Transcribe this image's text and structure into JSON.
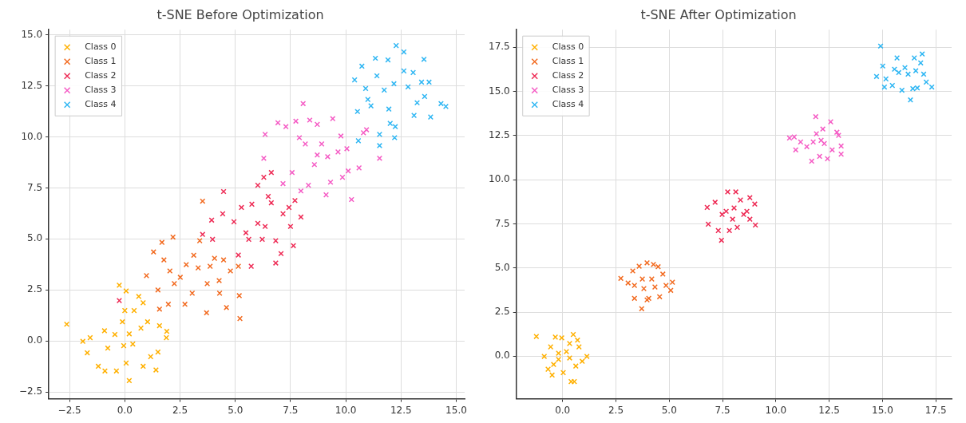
{
  "chart_data": [
    {
      "type": "scatter",
      "title": "t-SNE Before Optimization",
      "xlim": [
        -3.44,
        15.38
      ],
      "ylim": [
        -2.83,
        15.25
      ],
      "xticks": [
        {
          "value": -2.5,
          "label": "−2.5"
        },
        {
          "value": 0,
          "label": "0.0"
        },
        {
          "value": 2.5,
          "label": "2.5"
        },
        {
          "value": 5,
          "label": "5.0"
        },
        {
          "value": 7.5,
          "label": "7.5"
        },
        {
          "value": 10,
          "label": "10.0"
        },
        {
          "value": 12.5,
          "label": "12.5"
        },
        {
          "value": 15,
          "label": "15.0"
        }
      ],
      "yticks": [
        {
          "value": -2.5,
          "label": "−2.5"
        },
        {
          "value": 0,
          "label": "0.0"
        },
        {
          "value": 2.5,
          "label": "2.5"
        },
        {
          "value": 5,
          "label": "5.0"
        },
        {
          "value": 7.5,
          "label": "7.5"
        },
        {
          "value": 10,
          "label": "10.0"
        },
        {
          "value": 12.5,
          "label": "12.5"
        },
        {
          "value": 15,
          "label": "15.0"
        }
      ],
      "grid": true,
      "legend": "top left",
      "marker": "cross",
      "series": [
        {
          "name": "Class 0",
          "color": "#ffb000",
          "x": [
            -2.63,
            -1.9,
            -1.57,
            -1.7,
            -1.2,
            -0.9,
            -0.92,
            -0.77,
            -0.38,
            -0.25,
            0.06,
            0,
            -0.11,
            0.2,
            0.06,
            0.2,
            -0.05,
            0.63,
            0.83,
            0.73,
            1.03,
            1.17,
            1.5,
            1.41,
            1.9,
            1.88,
            1.57,
            0.42,
            0.36,
            -0.45,
            0.83
          ],
          "values": [
            0.82,
            -0.02,
            0.16,
            -0.58,
            -1.24,
            -1.47,
            0.5,
            -0.35,
            -1.47,
            2.73,
            2.45,
            1.49,
            0.94,
            0.35,
            -1.08,
            -1.94,
            -0.23,
            2.18,
            1.87,
            0.63,
            0.94,
            -0.77,
            -0.54,
            -1.42,
            0.47,
            0.16,
            0.75,
            1.49,
            -0.15,
            0.32,
            -1.24
          ]
        },
        {
          "name": "Class 1",
          "color": "#f26b21",
          "x": [
            0.98,
            1.3,
            1.68,
            2.18,
            1.5,
            1.57,
            1.97,
            1.77,
            2.04,
            2.24,
            2.51,
            2.72,
            3.05,
            3.32,
            3.39,
            3.52,
            3.73,
            3.7,
            3.86,
            4.06,
            4.27,
            4.47,
            4.78,
            4.6,
            4.29,
            5.14,
            5.18,
            5.21,
            2.78,
            3.12
          ],
          "values": [
            3.2,
            4.36,
            4.83,
            5.09,
            2.5,
            1.56,
            1.8,
            3.97,
            3.43,
            2.81,
            3.12,
            1.8,
            2.34,
            3.58,
            4.91,
            6.85,
            2.81,
            1.38,
            3.66,
            4.05,
            2.96,
            3.97,
            3.43,
            1.64,
            2.34,
            3.66,
            2.22,
            1.1,
            3.74,
            4.2
          ]
        },
        {
          "name": "Class 2",
          "color": "#ee2b55",
          "x": [
            -0.25,
            3.52,
            3.93,
            3.97,
            4.43,
            4.47,
            4.94,
            5.14,
            5.28,
            5.48,
            5.75,
            5.72,
            6.02,
            6.02,
            6.29,
            6.35,
            6.63,
            6.63,
            6.83,
            6.83,
            7.07,
            7.16,
            7.43,
            7.5,
            7.63,
            7.7,
            7.97,
            6.22,
            5.61,
            6.49
          ],
          "values": [
            1.98,
            5.22,
            5.92,
            4.98,
            6.23,
            7.32,
            5.84,
            4.21,
            6.54,
            5.3,
            6.7,
            3.66,
            7.63,
            5.76,
            8.02,
            5.61,
            8.25,
            6.77,
            4.91,
            3.82,
            4.28,
            6.23,
            6.54,
            5.61,
            4.67,
            6.88,
            6.07,
            4.98,
            4.98,
            7.08
          ]
        },
        {
          "name": "Class 3",
          "color": "#f55cc5",
          "x": [
            6.35,
            6.29,
            6.93,
            7.29,
            7.16,
            7.57,
            7.74,
            8.07,
            7.97,
            7.9,
            8.17,
            8.37,
            8.31,
            8.58,
            8.71,
            8.91,
            9.11,
            9.18,
            9.41,
            9.31,
            9.65,
            9.78,
            9.85,
            10.05,
            10.11,
            10.26,
            10.6,
            10.8,
            11.53,
            10.94,
            8.71
          ],
          "values": [
            10.12,
            8.95,
            10.69,
            10.5,
            7.71,
            8.25,
            10.77,
            11.63,
            7.35,
            9.96,
            9.65,
            10.82,
            7.63,
            8.64,
            10.61,
            9.65,
            7.16,
            9.03,
            10.89,
            7.78,
            9.26,
            10.04,
            8.02,
            9.42,
            8.33,
            6.93,
            8.48,
            10.2,
            8.95,
            10.35,
            9.11
          ]
        },
        {
          "name": "Class 4",
          "color": "#2eb6f3",
          "x": [
            10.4,
            10.57,
            10.73,
            10.53,
            10.9,
            11.0,
            11.34,
            11.41,
            11.53,
            11.53,
            11.74,
            11.91,
            11.95,
            12.01,
            12.21,
            12.18,
            12.28,
            12.24,
            12.63,
            12.63,
            12.82,
            13.05,
            13.09,
            13.23,
            13.43,
            13.54,
            13.57,
            13.84,
            13.77,
            14.31,
            14.53,
            11.14
          ],
          "values": [
            12.79,
            9.81,
            13.46,
            11.24,
            12.37,
            11.83,
            13.85,
            12.99,
            10.12,
            9.57,
            12.29,
            13.77,
            11.36,
            10.66,
            9.96,
            12.6,
            14.47,
            10.5,
            14.16,
            13.23,
            12.45,
            13.15,
            11.05,
            11.67,
            12.68,
            13.8,
            11.98,
            10.97,
            12.68,
            11.63,
            11.49,
            11.52
          ]
        }
      ]
    },
    {
      "type": "scatter",
      "title": "t-SNE After Optimization",
      "xlim": [
        -2.17,
        18.24
      ],
      "ylim": [
        -2.41,
        18.5
      ],
      "xticks": [
        {
          "value": 0,
          "label": "0.0"
        },
        {
          "value": 2.5,
          "label": "2.5"
        },
        {
          "value": 5,
          "label": "5.0"
        },
        {
          "value": 7.5,
          "label": "7.5"
        },
        {
          "value": 10,
          "label": "10.0"
        },
        {
          "value": 12.5,
          "label": "12.5"
        },
        {
          "value": 15,
          "label": "15.0"
        },
        {
          "value": 17.5,
          "label": "17.5"
        }
      ],
      "yticks": [
        {
          "value": 0,
          "label": "0.0"
        },
        {
          "value": 2.5,
          "label": "2.5"
        },
        {
          "value": 5,
          "label": "5.0"
        },
        {
          "value": 7.5,
          "label": "7.5"
        },
        {
          "value": 10,
          "label": "10.0"
        },
        {
          "value": 12.5,
          "label": "12.5"
        },
        {
          "value": 15,
          "label": "15.0"
        },
        {
          "value": 17.5,
          "label": "17.5"
        }
      ],
      "grid": true,
      "legend": "top left",
      "marker": "cross",
      "series": [
        {
          "name": "Class 0",
          "color": "#ffb000",
          "x": [
            -1.23,
            -0.86,
            -0.68,
            -0.49,
            -0.56,
            -0.34,
            -0.19,
            -0.04,
            0.03,
            0.18,
            0.33,
            0.4,
            0.55,
            0.5,
            0.62,
            0.77,
            0.92,
            1.14,
            -0.19,
            0.33,
            -0.42,
            0.7
          ],
          "values": [
            1.12,
            -0.01,
            -0.74,
            -1.07,
            0.53,
            1.08,
            -0.18,
            1.04,
            -0.93,
            0.26,
            0.72,
            -1.44,
            -1.44,
            1.23,
            -0.56,
            0.53,
            -0.29,
            -0.01,
            0.17,
            -0.1,
            -0.47,
            0.91
          ]
        },
        {
          "name": "Class 1",
          "color": "#f26b21",
          "x": [
            2.73,
            3.07,
            3.29,
            3.37,
            3.71,
            3.59,
            3.81,
            3.96,
            4.04,
            4.18,
            4.26,
            4.48,
            4.55,
            4.7,
            4.85,
            5.07,
            5.15,
            3.74,
            4.33,
            3.96,
            3.37
          ],
          "values": [
            4.41,
            4.15,
            4.83,
            3.28,
            2.69,
            5.1,
            3.83,
            5.29,
            3.28,
            4.37,
            5.2,
            5.07,
            3.37,
            4.65,
            4.01,
            3.73,
            4.19,
            4.37,
            3.92,
            3.19,
            4.01
          ]
        },
        {
          "name": "Class 2",
          "color": "#ee2b55",
          "x": [
            6.78,
            6.83,
            7.15,
            7.3,
            7.45,
            7.48,
            7.74,
            7.82,
            8.04,
            8.12,
            8.19,
            8.34,
            8.49,
            8.64,
            8.78,
            8.78,
            9.01,
            9.04,
            7.97,
            7.67
          ],
          "values": [
            8.43,
            7.48,
            8.72,
            7.12,
            6.57,
            8.03,
            9.31,
            7.12,
            8.4,
            9.31,
            7.3,
            8.85,
            8.03,
            8.21,
            8.98,
            7.76,
            8.62,
            7.43,
            7.76,
            8.21
          ]
        },
        {
          "name": "Class 3",
          "color": "#f55cc5",
          "x": [
            10.64,
            10.86,
            10.93,
            11.16,
            11.45,
            11.68,
            11.87,
            11.9,
            12.05,
            12.2,
            12.27,
            12.42,
            12.57,
            12.64,
            12.86,
            12.94,
            13.06,
            13.06,
            11.75,
            12.12
          ],
          "values": [
            12.36,
            12.42,
            11.69,
            12.14,
            11.87,
            11.05,
            13.57,
            12.6,
            11.32,
            12.87,
            12.05,
            11.19,
            13.28,
            11.69,
            12.69,
            12.51,
            11.91,
            11.45,
            12.14,
            12.23
          ]
        },
        {
          "name": "Class 4",
          "color": "#2eb6f3",
          "x": [
            14.72,
            14.91,
            15.01,
            15.09,
            15.16,
            15.46,
            15.68,
            15.76,
            15.91,
            16.05,
            16.31,
            16.42,
            16.49,
            16.56,
            16.63,
            16.79,
            16.86,
            16.93,
            17.05,
            17.31,
            15.56,
            16.2
          ],
          "values": [
            15.85,
            17.57,
            16.44,
            15.25,
            15.71,
            15.34,
            16.9,
            16.07,
            15.07,
            16.35,
            14.52,
            15.16,
            16.9,
            16.17,
            15.2,
            16.62,
            17.12,
            15.98,
            15.53,
            15.25,
            16.26,
            15.98
          ]
        }
      ]
    }
  ]
}
